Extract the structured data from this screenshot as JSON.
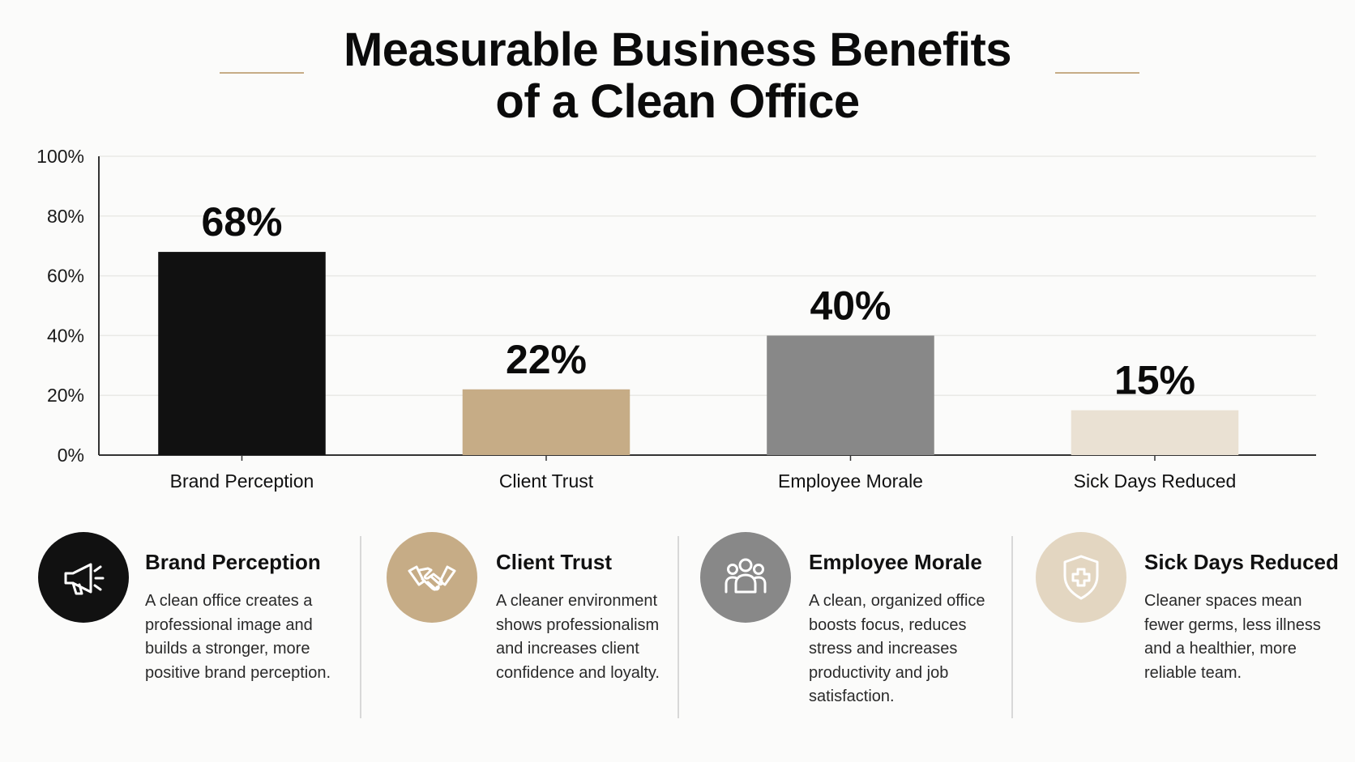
{
  "title": {
    "line1": "Measurable Business Benefits",
    "line2": "of a Clean Office"
  },
  "colors": {
    "background": "#fbfbfa",
    "accent": "#c6ac86",
    "text": "#111111",
    "axis": "#333333",
    "grid": "#e9e9e6"
  },
  "chart_data": {
    "type": "bar",
    "title": "Measurable Business Benefits of a Clean Office",
    "categories": [
      "Brand Perception",
      "Client Trust",
      "Employee Morale",
      "Sick Days Reduced"
    ],
    "values": [
      68,
      22,
      40,
      15
    ],
    "value_labels": [
      "68%",
      "22%",
      "40%",
      "15%"
    ],
    "bar_colors": [
      "#111111",
      "#c6ac86",
      "#888888",
      "#eae1d3"
    ],
    "xlabel": "",
    "ylabel": "",
    "ylim": [
      0,
      100
    ],
    "yticks": [
      0,
      20,
      40,
      60,
      80,
      100
    ],
    "ytick_labels": [
      "0%",
      "20%",
      "40%",
      "60%",
      "80%",
      "100%"
    ],
    "grid": true,
    "legend": "none"
  },
  "cards": [
    {
      "title": "Brand Perception",
      "text": "A clean office creates a\nprofessional image and\nbuilds a stronger, more\npositive brand perception.",
      "icon": "megaphone-icon",
      "icon_bg": "#111111",
      "icon_fg": "#ffffff"
    },
    {
      "title": "Client Trust",
      "text": "A cleaner environment\nshows professionalism\nand increases client\nconfidence and loyalty.",
      "icon": "handshake-icon",
      "icon_bg": "#c6ac86",
      "icon_fg": "#ffffff"
    },
    {
      "title": "Employee Morale",
      "text": "A clean, organized office\nboosts focus, reduces\nstress and increases\nproductivity and job\nsatisfaction.",
      "icon": "team-icon",
      "icon_bg": "#888888",
      "icon_fg": "#ffffff"
    },
    {
      "title": "Sick Days Reduced",
      "text": "Cleaner spaces mean\nfewer germs, less illness\nand a healthier, more\nreliable team.",
      "icon": "health-shield-icon",
      "icon_bg": "#e3d6c1",
      "icon_fg": "#ffffff"
    }
  ]
}
